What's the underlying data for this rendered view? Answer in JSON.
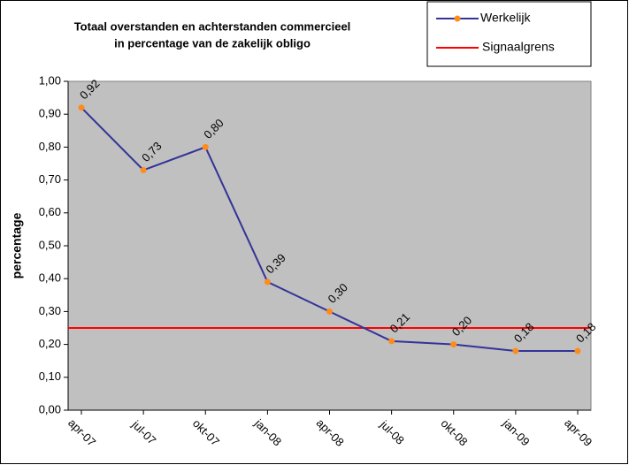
{
  "chart_data": {
    "type": "line",
    "title": [
      "Totaal overstanden en achterstanden commercieel",
      "in percentage van de zakelijk obligo"
    ],
    "ylabel": "percentage",
    "categories": [
      "apr-07",
      "jul-07",
      "okt-07",
      "jan-08",
      "apr-08",
      "jul-08",
      "okt-08",
      "jan-09",
      "apr-09"
    ],
    "series": [
      {
        "name": "Werkelijk",
        "color": "#333399",
        "marker_color": "#ff8c1a",
        "values": [
          0.92,
          0.73,
          0.8,
          0.39,
          0.3,
          0.21,
          0.2,
          0.18,
          0.18
        ],
        "value_labels": [
          "0,92",
          "0,73",
          "0,80",
          "0,39",
          "0,30",
          "0,21",
          "0,20",
          "0,18",
          "0,18"
        ]
      }
    ],
    "reference_line": {
      "name": "Signaalgrens",
      "color": "#ff0000",
      "value": 0.25
    },
    "ylim": [
      0,
      1
    ],
    "yticks": [
      {
        "value": 0,
        "label": "0,00"
      },
      {
        "value": 0.1,
        "label": "0,10"
      },
      {
        "value": 0.2,
        "label": "0,20"
      },
      {
        "value": 0.3,
        "label": "0,30"
      },
      {
        "value": 0.4,
        "label": "0,40"
      },
      {
        "value": 0.5,
        "label": "0,50"
      },
      {
        "value": 0.6,
        "label": "0,60"
      },
      {
        "value": 0.7,
        "label": "0,70"
      },
      {
        "value": 0.8,
        "label": "0,80"
      },
      {
        "value": 0.9,
        "label": "0,90"
      },
      {
        "value": 1,
        "label": "1,00"
      }
    ],
    "legend": "top-right",
    "plot_background": "#c0c0c0"
  }
}
